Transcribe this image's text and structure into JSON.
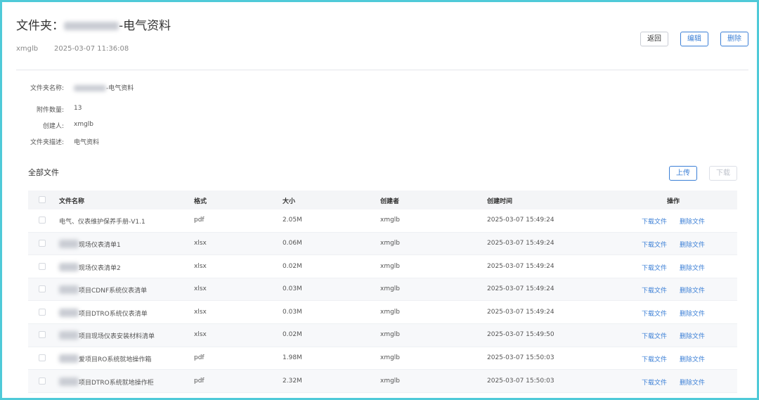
{
  "header": {
    "title_prefix": "文件夹：",
    "title_suffix": "-电气资料",
    "author": "xmglb",
    "time": "2025-03-07 11:36:08",
    "buttons": [
      "返回",
      "编辑",
      "删除"
    ]
  },
  "info": {
    "rows": [
      {
        "label": "文件夹名称:",
        "value": "-电气资料"
      },
      {
        "label": "附件数量:",
        "value": "13"
      },
      {
        "label": "创建人:",
        "value": "xmglb"
      },
      {
        "label": "文件夹描述:",
        "value": "电气资料"
      }
    ]
  },
  "files": {
    "title": "全部文件",
    "buttons": [
      "上传",
      "下载"
    ],
    "columns": [
      "文件名称",
      "格式",
      "大小",
      "创建者",
      "创建时间",
      "操作"
    ],
    "actions": [
      "下载文件",
      "删除文件"
    ],
    "rows": [
      [
        "电气、仪表维护保养手册-V1.1",
        "pdf",
        "2.05M",
        "xmglb",
        "2025-03-07 15:49:24"
      ],
      [
        "现场仪表清单1",
        "xlsx",
        "0.06M",
        "xmglb",
        "2025-03-07 15:49:24"
      ],
      [
        "现场仪表清单2",
        "xlsx",
        "0.02M",
        "xmglb",
        "2025-03-07 15:49:24"
      ],
      [
        "项目CDNF系统仪表清单",
        "xlsx",
        "0.03M",
        "xmglb",
        "2025-03-07 15:49:24"
      ],
      [
        "项目DTRO系统仪表清单",
        "xlsx",
        "0.03M",
        "xmglb",
        "2025-03-07 15:49:24"
      ],
      [
        "项目现场仪表安装材料清单",
        "xlsx",
        "0.02M",
        "xmglb",
        "2025-03-07 15:49:50"
      ],
      [
        "爱项目RO系统就地操作箱",
        "pdf",
        "1.98M",
        "xmglb",
        "2025-03-07 15:50:03"
      ],
      [
        "项目DTRO系统就地操作柜",
        "pdf",
        "2.32M",
        "xmglb",
        "2025-03-07 15:50:03"
      ]
    ]
  }
}
